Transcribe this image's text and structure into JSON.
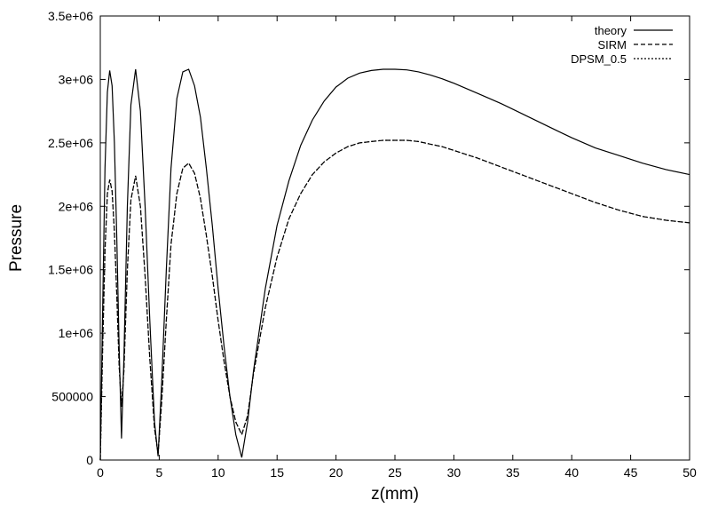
{
  "chart_data": {
    "type": "line",
    "xlabel": "z(mm)",
    "ylabel": "Pressure",
    "xlim": [
      0,
      50
    ],
    "ylim": [
      0,
      3500000
    ],
    "grid": false,
    "legend_position": "top-right",
    "x_ticks": [
      "0",
      "5",
      "10",
      "15",
      "20",
      "25",
      "30",
      "35",
      "40",
      "45",
      "50"
    ],
    "y_ticks": [
      "0",
      "500000",
      "1e+06",
      "1.5e+06",
      "2e+06",
      "2.5e+06",
      "3e+06",
      "3.5e+06"
    ],
    "series": [
      {
        "name": "theory",
        "style": "solid",
        "color": "#000000",
        "points": [
          [
            0,
            0
          ],
          [
            0.2,
            1200000
          ],
          [
            0.4,
            2300000
          ],
          [
            0.6,
            2900000
          ],
          [
            0.8,
            3070000
          ],
          [
            1.0,
            2950000
          ],
          [
            1.2,
            2500000
          ],
          [
            1.4,
            1750000
          ],
          [
            1.6,
            900000
          ],
          [
            1.8,
            170000
          ],
          [
            2.0,
            800000
          ],
          [
            2.3,
            2000000
          ],
          [
            2.6,
            2800000
          ],
          [
            3.0,
            3080000
          ],
          [
            3.4,
            2750000
          ],
          [
            3.8,
            2000000
          ],
          [
            4.2,
            1100000
          ],
          [
            4.6,
            300000
          ],
          [
            4.9,
            30000
          ],
          [
            5.2,
            600000
          ],
          [
            5.6,
            1500000
          ],
          [
            6.0,
            2300000
          ],
          [
            6.5,
            2850000
          ],
          [
            7.0,
            3060000
          ],
          [
            7.5,
            3080000
          ],
          [
            8.0,
            2950000
          ],
          [
            8.5,
            2700000
          ],
          [
            9.0,
            2300000
          ],
          [
            9.5,
            1850000
          ],
          [
            10.0,
            1350000
          ],
          [
            10.5,
            900000
          ],
          [
            11.0,
            500000
          ],
          [
            11.5,
            200000
          ],
          [
            12.0,
            20000
          ],
          [
            12.5,
            300000
          ],
          [
            13.0,
            700000
          ],
          [
            14.0,
            1350000
          ],
          [
            15.0,
            1850000
          ],
          [
            16.0,
            2200000
          ],
          [
            17.0,
            2480000
          ],
          [
            18.0,
            2680000
          ],
          [
            19.0,
            2830000
          ],
          [
            20.0,
            2940000
          ],
          [
            21.0,
            3010000
          ],
          [
            22.0,
            3050000
          ],
          [
            23.0,
            3070000
          ],
          [
            24.0,
            3080000
          ],
          [
            25.0,
            3080000
          ],
          [
            26.0,
            3075000
          ],
          [
            27.0,
            3060000
          ],
          [
            28.0,
            3035000
          ],
          [
            29.0,
            3005000
          ],
          [
            30.0,
            2970000
          ],
          [
            32.0,
            2890000
          ],
          [
            34.0,
            2810000
          ],
          [
            36.0,
            2720000
          ],
          [
            38.0,
            2630000
          ],
          [
            40.0,
            2540000
          ],
          [
            42.0,
            2460000
          ],
          [
            44.0,
            2400000
          ],
          [
            46.0,
            2340000
          ],
          [
            48.0,
            2290000
          ],
          [
            50.0,
            2250000
          ]
        ]
      },
      {
        "name": "SIRM",
        "style": "dashed",
        "color": "#000000",
        "points": [
          [
            0,
            0
          ],
          [
            0.2,
            900000
          ],
          [
            0.4,
            1650000
          ],
          [
            0.6,
            2100000
          ],
          [
            0.8,
            2210000
          ],
          [
            1.0,
            2120000
          ],
          [
            1.2,
            1800000
          ],
          [
            1.4,
            1300000
          ],
          [
            1.6,
            750000
          ],
          [
            1.8,
            420000
          ],
          [
            2.0,
            700000
          ],
          [
            2.3,
            1500000
          ],
          [
            2.6,
            2050000
          ],
          [
            3.0,
            2240000
          ],
          [
            3.4,
            2000000
          ],
          [
            3.8,
            1450000
          ],
          [
            4.2,
            800000
          ],
          [
            4.6,
            250000
          ],
          [
            4.9,
            50000
          ],
          [
            5.2,
            450000
          ],
          [
            5.6,
            1100000
          ],
          [
            6.0,
            1700000
          ],
          [
            6.5,
            2100000
          ],
          [
            7.0,
            2300000
          ],
          [
            7.5,
            2340000
          ],
          [
            8.0,
            2260000
          ],
          [
            8.5,
            2060000
          ],
          [
            9.0,
            1770000
          ],
          [
            9.5,
            1450000
          ],
          [
            10.0,
            1100000
          ],
          [
            10.5,
            780000
          ],
          [
            11.0,
            500000
          ],
          [
            11.5,
            300000
          ],
          [
            12.0,
            200000
          ],
          [
            12.5,
            350000
          ],
          [
            13.0,
            680000
          ],
          [
            14.0,
            1200000
          ],
          [
            15.0,
            1600000
          ],
          [
            16.0,
            1900000
          ],
          [
            17.0,
            2100000
          ],
          [
            18.0,
            2250000
          ],
          [
            19.0,
            2350000
          ],
          [
            20.0,
            2420000
          ],
          [
            21.0,
            2470000
          ],
          [
            22.0,
            2500000
          ],
          [
            23.0,
            2510000
          ],
          [
            24.0,
            2520000
          ],
          [
            25.0,
            2520000
          ],
          [
            26.0,
            2520000
          ],
          [
            27.0,
            2510000
          ],
          [
            28.0,
            2490000
          ],
          [
            29.0,
            2470000
          ],
          [
            30.0,
            2440000
          ],
          [
            32.0,
            2380000
          ],
          [
            34.0,
            2310000
          ],
          [
            36.0,
            2240000
          ],
          [
            38.0,
            2170000
          ],
          [
            40.0,
            2100000
          ],
          [
            42.0,
            2030000
          ],
          [
            44.0,
            1970000
          ],
          [
            46.0,
            1920000
          ],
          [
            48.0,
            1890000
          ],
          [
            50.0,
            1870000
          ]
        ]
      },
      {
        "name": "DPSM_0.5",
        "style": "dotted",
        "color": "#000000",
        "points": [
          [
            0,
            0
          ],
          [
            0.2,
            900000
          ],
          [
            0.4,
            1650000
          ],
          [
            0.6,
            2100000
          ],
          [
            0.8,
            2210000
          ],
          [
            1.0,
            2120000
          ],
          [
            1.2,
            1800000
          ],
          [
            1.4,
            1300000
          ],
          [
            1.6,
            750000
          ],
          [
            1.8,
            420000
          ],
          [
            2.0,
            700000
          ],
          [
            2.3,
            1500000
          ],
          [
            2.6,
            2050000
          ],
          [
            3.0,
            2240000
          ],
          [
            3.4,
            2000000
          ],
          [
            3.8,
            1450000
          ],
          [
            4.2,
            800000
          ],
          [
            4.6,
            250000
          ],
          [
            4.9,
            50000
          ],
          [
            5.2,
            450000
          ],
          [
            5.6,
            1100000
          ],
          [
            6.0,
            1700000
          ],
          [
            6.5,
            2100000
          ],
          [
            7.0,
            2300000
          ],
          [
            7.5,
            2340000
          ],
          [
            8.0,
            2260000
          ],
          [
            8.5,
            2060000
          ],
          [
            9.0,
            1770000
          ],
          [
            9.5,
            1450000
          ],
          [
            10.0,
            1100000
          ],
          [
            10.5,
            780000
          ],
          [
            11.0,
            500000
          ],
          [
            11.5,
            300000
          ],
          [
            12.0,
            200000
          ],
          [
            12.5,
            350000
          ],
          [
            13.0,
            680000
          ],
          [
            14.0,
            1200000
          ],
          [
            15.0,
            1600000
          ],
          [
            16.0,
            1900000
          ],
          [
            17.0,
            2100000
          ],
          [
            18.0,
            2250000
          ],
          [
            19.0,
            2350000
          ],
          [
            20.0,
            2420000
          ],
          [
            21.0,
            2470000
          ],
          [
            22.0,
            2500000
          ],
          [
            23.0,
            2510000
          ],
          [
            24.0,
            2520000
          ],
          [
            25.0,
            2520000
          ],
          [
            26.0,
            2520000
          ],
          [
            27.0,
            2510000
          ],
          [
            28.0,
            2490000
          ],
          [
            29.0,
            2470000
          ],
          [
            30.0,
            2440000
          ],
          [
            32.0,
            2380000
          ],
          [
            34.0,
            2310000
          ],
          [
            36.0,
            2240000
          ],
          [
            38.0,
            2170000
          ],
          [
            40.0,
            2100000
          ],
          [
            42.0,
            2030000
          ],
          [
            44.0,
            1970000
          ],
          [
            46.0,
            1920000
          ],
          [
            48.0,
            1890000
          ],
          [
            50.0,
            1870000
          ]
        ]
      }
    ]
  }
}
